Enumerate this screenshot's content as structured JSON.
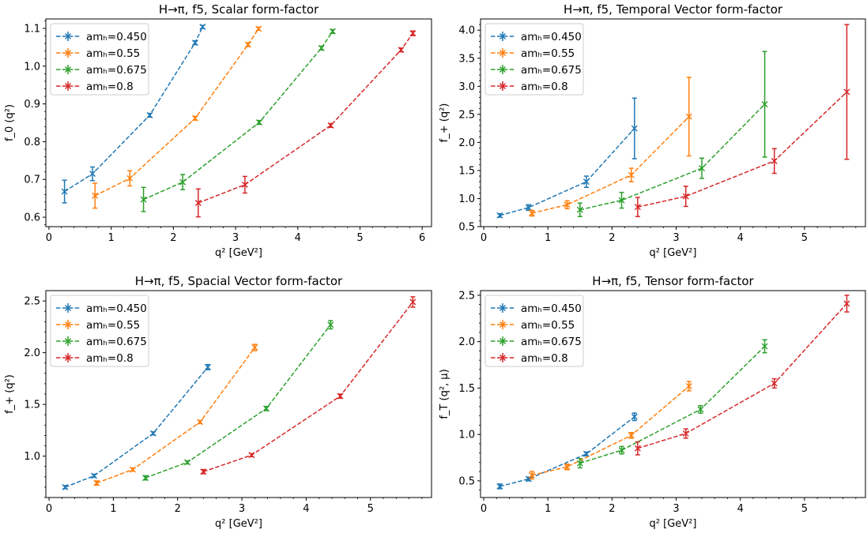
{
  "figure": {
    "legend_series_names": [
      "amₕ=0.450",
      "amₕ=0.55",
      "amₕ=0.675",
      "amₕ=0.8"
    ],
    "colors": [
      "#1f77b4",
      "#ff7f0e",
      "#2ca02c",
      "#d62728"
    ]
  },
  "chart_data": [
    {
      "type": "line",
      "title": "H→π, f5, Scalar form-factor",
      "xlabel": "q² [GeV²]",
      "ylabel": "f_0 (q²)",
      "xlim": [
        -0.05,
        6.15
      ],
      "ylim": [
        0.575,
        1.125
      ],
      "xticks": [
        0,
        1,
        2,
        3,
        4,
        5,
        6
      ],
      "yticks": [
        0.6,
        0.7,
        0.8,
        0.9,
        1.0,
        1.1
      ],
      "ytick_labels": [
        "0.6",
        "0.7",
        "0.8",
        "0.9",
        "1.0",
        "1.1"
      ],
      "grid": false,
      "legend": "top-left",
      "series": [
        {
          "name": "amₕ=0.450",
          "points": [
            {
              "x": 0.25,
              "y": 0.668,
              "err": 0.03
            },
            {
              "x": 0.7,
              "y": 0.715,
              "err": 0.018
            },
            {
              "x": 1.62,
              "y": 0.87,
              "err": 0.005
            },
            {
              "x": 2.35,
              "y": 1.062,
              "err": 0.005
            },
            {
              "x": 2.47,
              "y": 1.104,
              "err": 0.004
            }
          ]
        },
        {
          "name": "amₕ=0.55",
          "points": [
            {
              "x": 0.74,
              "y": 0.657,
              "err": 0.033
            },
            {
              "x": 1.3,
              "y": 0.703,
              "err": 0.02
            },
            {
              "x": 2.35,
              "y": 0.862,
              "err": 0.005
            },
            {
              "x": 3.2,
              "y": 1.057,
              "err": 0.005
            },
            {
              "x": 3.37,
              "y": 1.099,
              "err": 0.004
            }
          ]
        },
        {
          "name": "amₕ=0.675",
          "points": [
            {
              "x": 1.52,
              "y": 0.647,
              "err": 0.032
            },
            {
              "x": 2.15,
              "y": 0.693,
              "err": 0.02
            },
            {
              "x": 3.38,
              "y": 0.851,
              "err": 0.005
            },
            {
              "x": 4.38,
              "y": 1.048,
              "err": 0.005
            },
            {
              "x": 4.56,
              "y": 1.092,
              "err": 0.005
            }
          ]
        },
        {
          "name": "amₕ=0.8",
          "points": [
            {
              "x": 2.4,
              "y": 0.638,
              "err": 0.037
            },
            {
              "x": 3.15,
              "y": 0.686,
              "err": 0.022
            },
            {
              "x": 4.53,
              "y": 0.843,
              "err": 0.005
            },
            {
              "x": 5.66,
              "y": 1.043,
              "err": 0.005
            },
            {
              "x": 5.85,
              "y": 1.087,
              "err": 0.006
            }
          ]
        }
      ]
    },
    {
      "type": "line",
      "title": "H→π, f5, Temporal Vector form-factor",
      "xlabel": "q² [GeV²]",
      "ylabel": "f_+ (q²)",
      "xlim": [
        -0.05,
        5.95
      ],
      "ylim": [
        0.5,
        4.2
      ],
      "xticks": [
        0,
        1,
        2,
        3,
        4,
        5
      ],
      "yticks": [
        0.5,
        1.0,
        1.5,
        2.0,
        2.5,
        3.0,
        3.5,
        4.0
      ],
      "ytick_labels": [
        "0.5",
        "1.0",
        "1.5",
        "2.0",
        "2.5",
        "3.0",
        "3.5",
        "4.0"
      ],
      "grid": false,
      "legend": "top-left",
      "series": [
        {
          "name": "amₕ=0.450",
          "points": [
            {
              "x": 0.25,
              "y": 0.7,
              "err": 0.03
            },
            {
              "x": 0.7,
              "y": 0.84,
              "err": 0.05
            },
            {
              "x": 1.6,
              "y": 1.3,
              "err": 0.1
            },
            {
              "x": 2.35,
              "y": 2.25,
              "err": 0.54
            }
          ]
        },
        {
          "name": "amₕ=0.55",
          "points": [
            {
              "x": 0.75,
              "y": 0.74,
              "err": 0.05
            },
            {
              "x": 1.3,
              "y": 0.89,
              "err": 0.07
            },
            {
              "x": 2.3,
              "y": 1.42,
              "err": 0.12
            },
            {
              "x": 3.2,
              "y": 2.46,
              "err": 0.7
            }
          ]
        },
        {
          "name": "amₕ=0.675",
          "points": [
            {
              "x": 1.5,
              "y": 0.8,
              "err": 0.12
            },
            {
              "x": 2.15,
              "y": 0.97,
              "err": 0.14
            },
            {
              "x": 3.4,
              "y": 1.54,
              "err": 0.18
            },
            {
              "x": 4.38,
              "y": 2.68,
              "err": 0.94
            }
          ]
        },
        {
          "name": "amₕ=0.8",
          "points": [
            {
              "x": 2.4,
              "y": 0.85,
              "err": 0.17
            },
            {
              "x": 3.15,
              "y": 1.04,
              "err": 0.18
            },
            {
              "x": 4.53,
              "y": 1.67,
              "err": 0.22
            },
            {
              "x": 5.66,
              "y": 2.9,
              "err": 1.2
            }
          ]
        }
      ]
    },
    {
      "type": "line",
      "title": "H→π, f5, Spacial Vector form-factor",
      "xlabel": "q² [GeV²]",
      "ylabel": "f_+ (q²)",
      "xlim": [
        -0.05,
        5.95
      ],
      "ylim": [
        0.6,
        2.6
      ],
      "xticks": [
        0,
        1,
        2,
        3,
        4,
        5
      ],
      "yticks": [
        1.0,
        1.5,
        2.0,
        2.5
      ],
      "ytick_labels": [
        "1.0",
        "1.5",
        "2.0",
        "2.5"
      ],
      "grid": false,
      "legend": "top-left",
      "series": [
        {
          "name": "amₕ=0.450",
          "points": [
            {
              "x": 0.25,
              "y": 0.7,
              "err": 0.015
            },
            {
              "x": 0.7,
              "y": 0.81,
              "err": 0.015
            },
            {
              "x": 1.62,
              "y": 1.22,
              "err": 0.015
            },
            {
              "x": 2.47,
              "y": 1.86,
              "err": 0.025
            }
          ]
        },
        {
          "name": "amₕ=0.55",
          "points": [
            {
              "x": 0.74,
              "y": 0.74,
              "err": 0.02
            },
            {
              "x": 1.3,
              "y": 0.87,
              "err": 0.015
            },
            {
              "x": 2.35,
              "y": 1.33,
              "err": 0.015
            },
            {
              "x": 3.2,
              "y": 2.05,
              "err": 0.03
            }
          ]
        },
        {
          "name": "amₕ=0.675",
          "points": [
            {
              "x": 1.5,
              "y": 0.79,
              "err": 0.02
            },
            {
              "x": 2.15,
              "y": 0.94,
              "err": 0.015
            },
            {
              "x": 3.38,
              "y": 1.46,
              "err": 0.02
            },
            {
              "x": 4.38,
              "y": 2.27,
              "err": 0.04
            }
          ]
        },
        {
          "name": "amₕ=0.8",
          "points": [
            {
              "x": 2.4,
              "y": 0.85,
              "err": 0.02
            },
            {
              "x": 3.15,
              "y": 1.01,
              "err": 0.015
            },
            {
              "x": 4.53,
              "y": 1.58,
              "err": 0.02
            },
            {
              "x": 5.66,
              "y": 2.49,
              "err": 0.05
            }
          ]
        }
      ]
    },
    {
      "type": "line",
      "title": "H→π, f5, Tensor form-factor",
      "xlabel": "q² [GeV²]",
      "ylabel": "f_T (q², μ)",
      "xlim": [
        -0.05,
        5.95
      ],
      "ylim": [
        0.32,
        2.55
      ],
      "xticks": [
        0,
        1,
        2,
        3,
        4,
        5
      ],
      "yticks": [
        0.5,
        1.0,
        1.5,
        2.0,
        2.5
      ],
      "ytick_labels": [
        "0.5",
        "1.0",
        "1.5",
        "2.0",
        "2.5"
      ],
      "grid": false,
      "legend": "top-left",
      "series": [
        {
          "name": "amₕ=0.450",
          "points": [
            {
              "x": 0.25,
              "y": 0.44,
              "err": 0.025
            },
            {
              "x": 0.7,
              "y": 0.52,
              "err": 0.02
            },
            {
              "x": 1.6,
              "y": 0.79,
              "err": 0.02
            },
            {
              "x": 2.35,
              "y": 1.19,
              "err": 0.04
            }
          ]
        },
        {
          "name": "amₕ=0.55",
          "points": [
            {
              "x": 0.75,
              "y": 0.56,
              "err": 0.04
            },
            {
              "x": 1.3,
              "y": 0.65,
              "err": 0.03
            },
            {
              "x": 2.3,
              "y": 0.99,
              "err": 0.03
            },
            {
              "x": 3.2,
              "y": 1.52,
              "err": 0.05
            }
          ]
        },
        {
          "name": "amₕ=0.675",
          "points": [
            {
              "x": 1.5,
              "y": 0.69,
              "err": 0.05
            },
            {
              "x": 2.15,
              "y": 0.83,
              "err": 0.04
            },
            {
              "x": 3.38,
              "y": 1.27,
              "err": 0.04
            },
            {
              "x": 4.38,
              "y": 1.95,
              "err": 0.07
            }
          ]
        },
        {
          "name": "amₕ=0.8",
          "points": [
            {
              "x": 2.4,
              "y": 0.85,
              "err": 0.07
            },
            {
              "x": 3.15,
              "y": 1.01,
              "err": 0.05
            },
            {
              "x": 4.53,
              "y": 1.55,
              "err": 0.05
            },
            {
              "x": 5.66,
              "y": 2.41,
              "err": 0.09
            }
          ]
        }
      ]
    }
  ]
}
